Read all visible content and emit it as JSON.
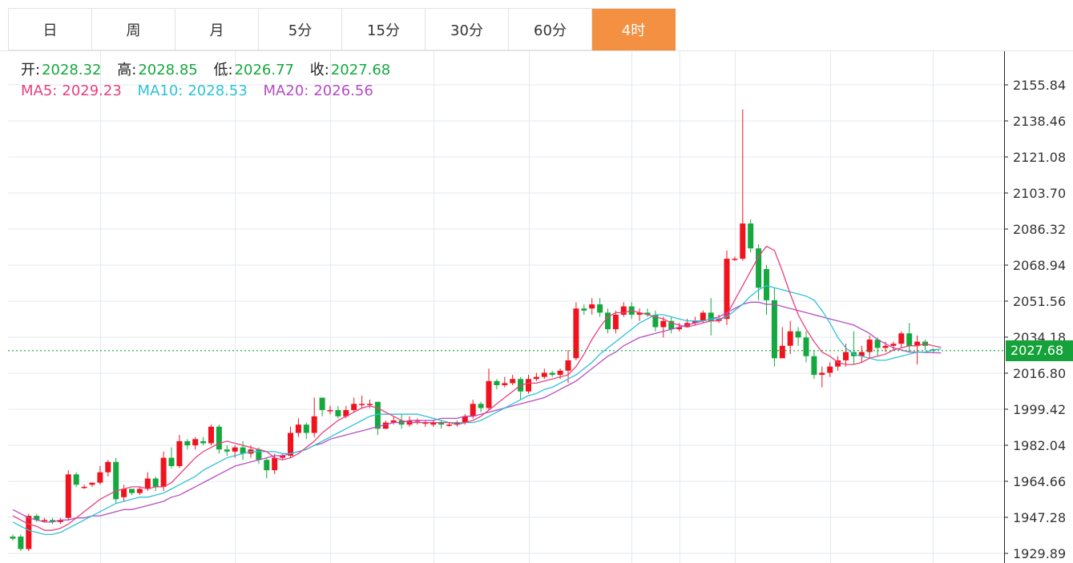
{
  "tabs": [
    {
      "label": "日",
      "active": false
    },
    {
      "label": "周",
      "active": false
    },
    {
      "label": "月",
      "active": false
    },
    {
      "label": "5分",
      "active": false
    },
    {
      "label": "15分",
      "active": false
    },
    {
      "label": "30分",
      "active": false
    },
    {
      "label": "60分",
      "active": false
    },
    {
      "label": "4时",
      "active": true
    }
  ],
  "colors": {
    "active_tab": "#f39041",
    "up": "#f0131e",
    "down": "#15a83f",
    "ma5": "#e8417c",
    "ma10": "#2fc1d8",
    "ma20": "#b44ec2",
    "grid": "#e3e8ef",
    "price_line": "#16a23a"
  },
  "ohlc": {
    "open_label": "开:",
    "open": "2028.32",
    "high_label": "高:",
    "high": "2028.85",
    "low_label": "低:",
    "low": "2026.77",
    "close_label": "收:",
    "close": "2027.68"
  },
  "ma": {
    "ma5_label": "MA5:",
    "ma5": "2029.23",
    "ma10_label": "MA10:",
    "ma10": "2028.53",
    "ma20_label": "MA20:",
    "ma20": "2026.56"
  },
  "current_price": "2027.68",
  "chart_data": {
    "type": "candlestick",
    "ylim": [
      1925,
      2165
    ],
    "y_ticks": [
      "2155.84",
      "2138.46",
      "2121.08",
      "2103.70",
      "2086.32",
      "2068.94",
      "2051.56",
      "2034.18",
      "2016.80",
      "1999.42",
      "1982.04",
      "1964.66",
      "1947.28",
      "1929.89"
    ],
    "current": 2027.68,
    "candles": [
      [
        1938,
        1937,
        1939,
        1936
      ],
      [
        1938,
        1932,
        1939,
        1931
      ],
      [
        1932,
        1948,
        1949,
        1931
      ],
      [
        1948,
        1946,
        1949,
        1945
      ],
      [
        1946,
        1946,
        1947,
        1945
      ],
      [
        1946,
        1945,
        1947,
        1944
      ],
      [
        1945,
        1946,
        1947,
        1944
      ],
      [
        1947,
        1968,
        1970,
        1946
      ],
      [
        1968,
        1963,
        1969,
        1962
      ],
      [
        1962,
        1962,
        1963,
        1961
      ],
      [
        1963,
        1964,
        1964,
        1962
      ],
      [
        1964,
        1969,
        1972,
        1963
      ],
      [
        1969,
        1974,
        1975,
        1967
      ],
      [
        1974,
        1956,
        1976,
        1954
      ],
      [
        1957,
        1961,
        1963,
        1955
      ],
      [
        1961,
        1959,
        1961,
        1958
      ],
      [
        1959,
        1961,
        1962,
        1958
      ],
      [
        1961,
        1966,
        1969,
        1960
      ],
      [
        1966,
        1962,
        1967,
        1960
      ],
      [
        1962,
        1976,
        1979,
        1960
      ],
      [
        1976,
        1972,
        1981,
        1971
      ],
      [
        1972,
        1984,
        1987,
        1971
      ],
      [
        1984,
        1982,
        1985,
        1980
      ],
      [
        1982,
        1985,
        1986,
        1980
      ],
      [
        1984,
        1983,
        1986,
        1982
      ],
      [
        1983,
        1991,
        1992,
        1982
      ],
      [
        1991,
        1980,
        1992,
        1978
      ],
      [
        1980,
        1979,
        1982,
        1977
      ],
      [
        1979,
        1981,
        1982,
        1976
      ],
      [
        1981,
        1978,
        1984,
        1975
      ],
      [
        1978,
        1980,
        1982,
        1976
      ],
      [
        1980,
        1975,
        1981,
        1973
      ],
      [
        1975,
        1970,
        1976,
        1966
      ],
      [
        1970,
        1976,
        1978,
        1968
      ],
      [
        1976,
        1977,
        1978,
        1975
      ],
      [
        1977,
        1988,
        1991,
        1976
      ],
      [
        1988,
        1992,
        1995,
        1986
      ],
      [
        1992,
        1988,
        1993,
        1985
      ],
      [
        1988,
        1996,
        2005,
        1986
      ],
      [
        2005,
        1999,
        2005,
        1996
      ],
      [
        1999,
        1999,
        2001,
        1997
      ],
      [
        1999,
        1996,
        2001,
        1995
      ],
      [
        1996,
        1999,
        2001,
        1995
      ],
      [
        1999,
        2002,
        2005,
        1998
      ],
      [
        2002,
        2002,
        2006,
        2000
      ],
      [
        2002,
        2002,
        2004,
        2000
      ],
      [
        2003,
        1990,
        2003,
        1987
      ],
      [
        1990,
        1993,
        1994,
        1990
      ],
      [
        1993,
        1994,
        1996,
        1992
      ],
      [
        1994,
        1992,
        1997,
        1990
      ],
      [
        1992,
        1994,
        1996,
        1991
      ],
      [
        1994,
        1994,
        1995,
        1992
      ],
      [
        1993,
        1993,
        1994,
        1991
      ],
      [
        1992,
        1993,
        1994,
        1991
      ],
      [
        1993,
        1992,
        1994,
        1990
      ],
      [
        1992,
        1992,
        1993,
        1991
      ],
      [
        1992,
        1993,
        1994,
        1991
      ],
      [
        1993,
        1996,
        1997,
        1992
      ],
      [
        1996,
        2002,
        2004,
        1995
      ],
      [
        2002,
        2000,
        2003,
        1998
      ],
      [
        2000,
        2013,
        2019,
        1999
      ],
      [
        2013,
        2011,
        2014,
        2009
      ],
      [
        2011,
        2012,
        2015,
        2010
      ],
      [
        2012,
        2014,
        2016,
        2011
      ],
      [
        2014,
        2008,
        2015,
        2004
      ],
      [
        2008,
        2014,
        2016,
        2007
      ],
      [
        2014,
        2015,
        2017,
        2013
      ],
      [
        2015,
        2017,
        2019,
        2014
      ],
      [
        2017,
        2016,
        2018,
        2015
      ],
      [
        2016,
        2018,
        2019,
        2014
      ],
      [
        2018,
        2023,
        2028,
        2012
      ],
      [
        2024,
        2048,
        2051,
        2023
      ],
      [
        2048,
        2047,
        2050,
        2045
      ],
      [
        2048,
        2050,
        2053,
        2045
      ],
      [
        2050,
        2046,
        2053,
        2044
      ],
      [
        2046,
        2038,
        2048,
        2036
      ],
      [
        2038,
        2045,
        2047,
        2036
      ],
      [
        2045,
        2049,
        2051,
        2044
      ],
      [
        2049,
        2045,
        2051,
        2043
      ],
      [
        2045,
        2046,
        2048,
        2042
      ],
      [
        2046,
        2045,
        2048,
        2044
      ],
      [
        2045,
        2039,
        2047,
        2037
      ],
      [
        2039,
        2042,
        2044,
        2034
      ],
      [
        2042,
        2038,
        2044,
        2036
      ],
      [
        2038,
        2039,
        2041,
        2037
      ],
      [
        2039,
        2041,
        2043,
        2039
      ],
      [
        2041,
        2042,
        2044,
        2040
      ],
      [
        2042,
        2046,
        2047,
        2041
      ],
      [
        2046,
        2042,
        2053,
        2035
      ],
      [
        2042,
        2043,
        2045,
        2041
      ],
      [
        2043,
        2072,
        2076,
        2040
      ],
      [
        2072,
        2072,
        2073,
        2071
      ],
      [
        2072,
        2089,
        2144,
        2071
      ],
      [
        2089,
        2077,
        2091,
        2075
      ],
      [
        2077,
        2058,
        2079,
        2052
      ],
      [
        2067,
        2052,
        2069,
        2045
      ],
      [
        2052,
        2024,
        2058,
        2020
      ],
      [
        2024,
        2030,
        2039,
        2025
      ],
      [
        2030,
        2037,
        2042,
        2026
      ],
      [
        2037,
        2034,
        2039,
        2030
      ],
      [
        2034,
        2025,
        2037,
        2022
      ],
      [
        2025,
        2016,
        2028,
        2014
      ],
      [
        2016,
        2017,
        2020,
        2010
      ],
      [
        2017,
        2020,
        2022,
        2015
      ],
      [
        2020,
        2023,
        2025,
        2018
      ],
      [
        2023,
        2027,
        2031,
        2020
      ],
      [
        2027,
        2025,
        2037,
        2021
      ],
      [
        2025,
        2027,
        2030,
        2022
      ],
      [
        2027,
        2033,
        2035,
        2024
      ],
      [
        2033,
        2029,
        2034,
        2025
      ],
      [
        2029,
        2030,
        2032,
        2027
      ],
      [
        2030,
        2031,
        2032,
        2028
      ],
      [
        2031,
        2036,
        2037,
        2029
      ],
      [
        2036,
        2030,
        2041,
        2027
      ],
      [
        2030,
        2032,
        2035,
        2021
      ],
      [
        2032,
        2030,
        2033,
        2028
      ],
      [
        2028.32,
        2027.68,
        2028.85,
        2026.77
      ]
    ],
    "ma5": [
      1948,
      1946,
      1944,
      1943,
      1941,
      1941,
      1942,
      1944,
      1947,
      1950,
      1953,
      1956,
      1958,
      1960,
      1961,
      1962,
      1962,
      1961,
      1962,
      1962,
      1964,
      1968,
      1972,
      1976,
      1979,
      1981,
      1983,
      1984,
      1983,
      1982,
      1981,
      1980,
      1979,
      1976,
      1975,
      1976,
      1978,
      1981,
      1984,
      1988,
      1991,
      1994,
      1996,
      1998,
      2000,
      2001,
      2000,
      1998,
      1996,
      1994,
      1993,
      1993,
      1993,
      1993,
      1993,
      1993,
      1992,
      1993,
      1994,
      1996,
      1999,
      2002,
      2005,
      2008,
      2011,
      2012,
      2012,
      2013,
      2014,
      2015,
      2016,
      2020,
      2026,
      2033,
      2039,
      2044,
      2046,
      2046,
      2047,
      2046,
      2045,
      2044,
      2043,
      2041,
      2040,
      2039,
      2040,
      2041,
      2042,
      2042,
      2045,
      2052,
      2059,
      2066,
      2073,
      2078,
      2076,
      2066,
      2055,
      2045,
      2038,
      2032,
      2027,
      2025,
      2022,
      2021,
      2021,
      2022,
      2024,
      2025,
      2026,
      2028,
      2029,
      2030,
      2030,
      2031,
      2030,
      2029.23
    ],
    "ma10": [
      1945,
      1943,
      1941,
      1940,
      1939,
      1939,
      1940,
      1942,
      1944,
      1946,
      1948,
      1950,
      1952,
      1954,
      1955,
      1956,
      1957,
      1957,
      1958,
      1959,
      1961,
      1963,
      1965,
      1967,
      1970,
      1972,
      1974,
      1976,
      1977,
      1978,
      1979,
      1979,
      1979,
      1979,
      1978,
      1978,
      1979,
      1980,
      1982,
      1984,
      1986,
      1988,
      1990,
      1992,
      1994,
      1996,
      1997,
      1997,
      1997,
      1997,
      1997,
      1997,
      1996,
      1995,
      1994,
      1993,
      1993,
      1993,
      1993,
      1994,
      1996,
      1998,
      2000,
      2002,
      2004,
      2006,
      2007,
      2009,
      2010,
      2012,
      2014,
      2016,
      2019,
      2022,
      2026,
      2029,
      2032,
      2035,
      2038,
      2041,
      2043,
      2045,
      2045,
      2044,
      2043,
      2042,
      2042,
      2042,
      2043,
      2043,
      2044,
      2047,
      2050,
      2054,
      2057,
      2059,
      2058,
      2057,
      2056,
      2055,
      2054,
      2052,
      2047,
      2041,
      2034,
      2029,
      2026,
      2025,
      2024,
      2023,
      2023,
      2024,
      2025,
      2026,
      2027,
      2027,
      2028,
      2028.53
    ],
    "ma20": [
      1951,
      1949,
      1947,
      1946,
      1945,
      1945,
      1946,
      1946,
      1947,
      1947,
      1948,
      1948,
      1949,
      1950,
      1951,
      1951,
      1952,
      1953,
      1954,
      1955,
      1957,
      1958,
      1960,
      1962,
      1964,
      1966,
      1968,
      1970,
      1972,
      1973,
      1974,
      1975,
      1976,
      1977,
      1977,
      1978,
      1979,
      1980,
      1982,
      1983,
      1985,
      1986,
      1987,
      1988,
      1989,
      1990,
      1991,
      1992,
      1993,
      1993,
      1994,
      1994,
      1994,
      1994,
      1995,
      1995,
      1995,
      1996,
      1996,
      1997,
      1998,
      1999,
      2000,
      2001,
      2002,
      2003,
      2004,
      2005,
      2007,
      2009,
      2011,
      2013,
      2016,
      2019,
      2022,
      2025,
      2027,
      2030,
      2032,
      2034,
      2035,
      2036,
      2037,
      2038,
      2039,
      2040,
      2041,
      2042,
      2043,
      2044,
      2046,
      2048,
      2050,
      2051,
      2051,
      2050,
      2050,
      2049,
      2048,
      2047,
      2046,
      2045,
      2044,
      2043,
      2042,
      2041,
      2040,
      2038,
      2036,
      2033,
      2031,
      2029,
      2028,
      2027,
      2027,
      2026.8,
      2026.7,
      2026.56
    ]
  }
}
